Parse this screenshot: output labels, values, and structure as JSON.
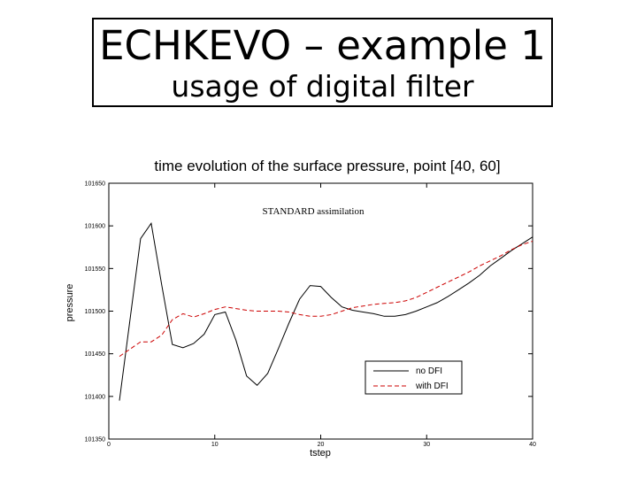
{
  "slide": {
    "title_line1": "ECHKEVO – example 1",
    "title_line2": "usage of digital filter"
  },
  "chart_data": {
    "type": "line",
    "title": "time evolution of the surface pressure, point [40, 60]",
    "xlabel": "tstep",
    "ylabel": "pressure",
    "annotation": "STANDARD assimilation",
    "xlim": [
      0,
      40
    ],
    "ylim": [
      101350,
      101650
    ],
    "x_ticks": [
      0,
      10,
      20,
      30,
      40
    ],
    "y_ticks": [
      101350,
      101400,
      101450,
      101500,
      101550,
      101600,
      101650
    ],
    "grid": false,
    "legend_position": "bottom-right",
    "series": [
      {
        "name": "no DFI",
        "style": "solid",
        "color": "#000000",
        "x": [
          1,
          3,
          4,
          5,
          6,
          7,
          8,
          9,
          10,
          11,
          12,
          13,
          14,
          15,
          16,
          17,
          18,
          19,
          20,
          21,
          22,
          23,
          24,
          25,
          26,
          27,
          28,
          29,
          30,
          31,
          32,
          33,
          34,
          35,
          36,
          37,
          38,
          39,
          40
        ],
        "y": [
          101395,
          101585,
          101603,
          101530,
          101461,
          101457,
          101462,
          101473,
          101496,
          101499,
          101466,
          101424,
          101413,
          101427,
          101456,
          101486,
          101514,
          101530,
          101529,
          101516,
          101505,
          101501,
          101499,
          101497,
          101494,
          101494,
          101496,
          101500,
          101505,
          101510,
          101517,
          101525,
          101533,
          101542,
          101553,
          101562,
          101571,
          101579,
          101587
        ]
      },
      {
        "name": "with DFI",
        "style": "dashed",
        "color": "#cc0000",
        "x": [
          1,
          3,
          4,
          5,
          6,
          7,
          8,
          9,
          10,
          11,
          12,
          13,
          14,
          15,
          16,
          17,
          18,
          19,
          20,
          21,
          22,
          23,
          24,
          25,
          26,
          27,
          28,
          29,
          30,
          31,
          32,
          33,
          34,
          35,
          36,
          37,
          38,
          39,
          40
        ],
        "y": [
          101447,
          101464,
          101464,
          101472,
          101490,
          101497,
          101493,
          101497,
          101502,
          101505,
          101503,
          101501,
          101500,
          101500,
          101500,
          101499,
          101496,
          101494,
          101494,
          101496,
          101500,
          101504,
          101506,
          101508,
          101509,
          101510,
          101512,
          101516,
          101522,
          101528,
          101534,
          101540,
          101546,
          101553,
          101559,
          101565,
          101572,
          101578,
          101582
        ]
      }
    ]
  }
}
